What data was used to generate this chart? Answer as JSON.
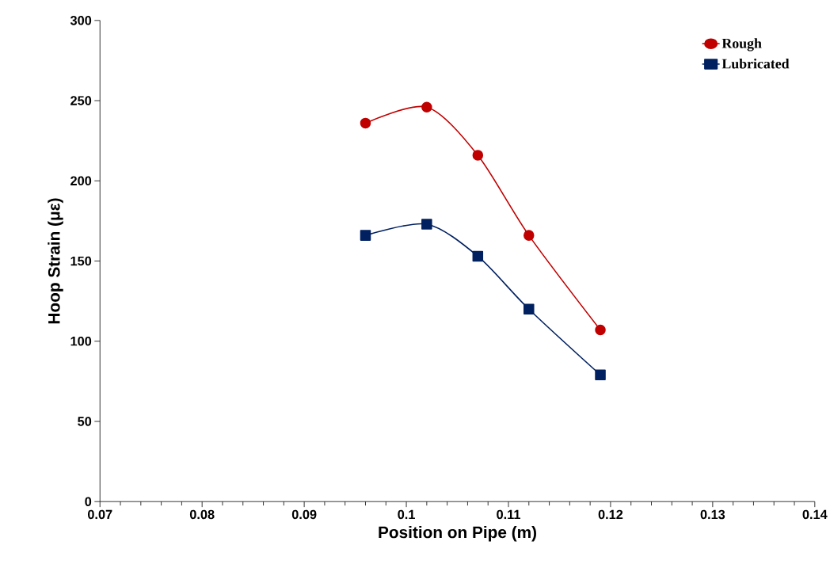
{
  "chart_data": {
    "type": "line",
    "xlabel": "Position on Pipe (m)",
    "ylabel": "Hoop Strain (με)",
    "xlim": [
      0.07,
      0.14
    ],
    "xticks": [
      0.07,
      0.08,
      0.09,
      0.1,
      0.11,
      0.12,
      0.13,
      0.14
    ],
    "ylim": [
      0,
      300
    ],
    "yticks": [
      0,
      50,
      100,
      150,
      200,
      250,
      300
    ],
    "x": [
      0.096,
      0.102,
      0.107,
      0.112,
      0.119
    ],
    "series": [
      {
        "name": "Rough",
        "color": "#c00000",
        "marker": "circle",
        "values": [
          236,
          246,
          216,
          166,
          107
        ]
      },
      {
        "name": "Lubricated",
        "color": "#002060",
        "marker": "square",
        "values": [
          166,
          173,
          153,
          120,
          79
        ]
      }
    ],
    "legend": "top right",
    "grid": false,
    "line_style": "solid"
  }
}
